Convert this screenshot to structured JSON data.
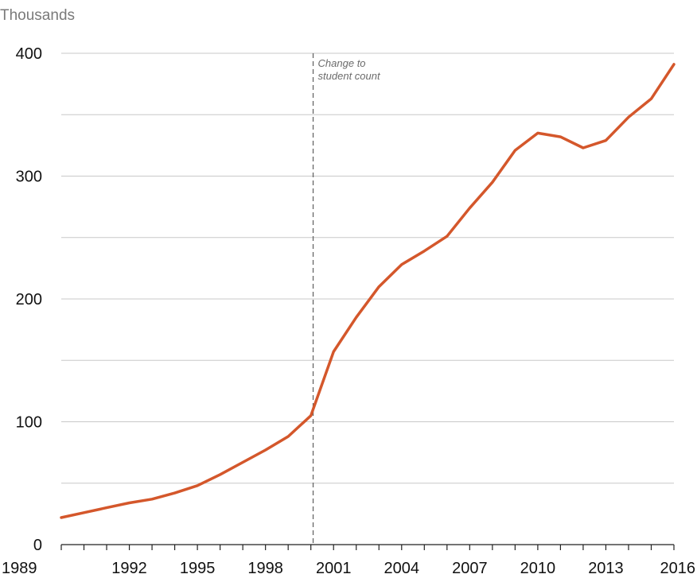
{
  "chart_data": {
    "type": "line",
    "unit_label": "Thousands",
    "ylim": [
      0,
      400
    ],
    "xlim": [
      1989,
      2016
    ],
    "yticks": [
      0,
      100,
      200,
      300,
      400
    ],
    "xticks": [
      1989,
      1992,
      1995,
      1998,
      2001,
      2004,
      2007,
      2010,
      2013,
      2016
    ],
    "grid": true,
    "series": [
      {
        "color": "#d4572b",
        "points": [
          [
            1989,
            22
          ],
          [
            1990,
            26
          ],
          [
            1991,
            30
          ],
          [
            1992,
            34
          ],
          [
            1993,
            37
          ],
          [
            1994,
            42
          ],
          [
            1995,
            48
          ],
          [
            1996,
            57
          ],
          [
            1997,
            67
          ],
          [
            1998,
            77
          ],
          [
            1999,
            88
          ],
          [
            2000,
            105
          ],
          [
            2001,
            157
          ],
          [
            2002,
            185
          ],
          [
            2003,
            210
          ],
          [
            2004,
            228
          ],
          [
            2005,
            239
          ],
          [
            2006,
            251
          ],
          [
            2007,
            274
          ],
          [
            2008,
            295
          ],
          [
            2009,
            321
          ],
          [
            2010,
            335
          ],
          [
            2011,
            332
          ],
          [
            2012,
            323
          ],
          [
            2013,
            329
          ],
          [
            2014,
            348
          ],
          [
            2015,
            363
          ],
          [
            2016,
            391
          ]
        ]
      }
    ],
    "annotation": {
      "x": 2000.1,
      "lines": [
        "Change to",
        "student count"
      ]
    }
  }
}
